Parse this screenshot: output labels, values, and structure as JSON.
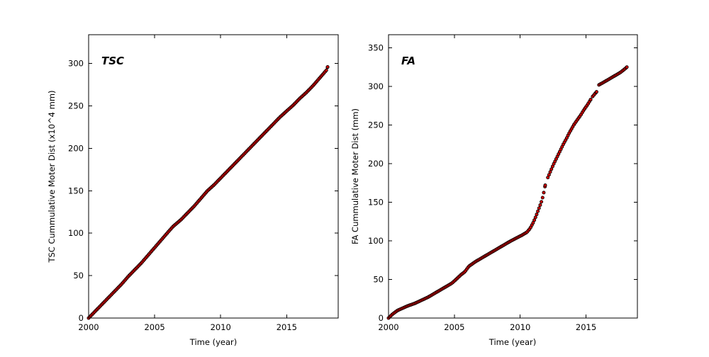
{
  "figure": {
    "background": "#ffffff",
    "axis_color": "#000000"
  },
  "chart_data": [
    {
      "type": "scatter",
      "panel_label": "TSC",
      "xlabel": "Time (year)",
      "ylabel": "TSC Cummulative Moter Dist (x10^4 mm)",
      "xlim": [
        2000,
        2018.9
      ],
      "ylim": [
        0,
        334
      ],
      "xticks": [
        2000,
        2005,
        2010,
        2015
      ],
      "yticks": [
        0,
        50,
        100,
        150,
        200,
        250,
        300
      ],
      "grid": false,
      "legend": "none",
      "marker": {
        "shape": "circle",
        "fill_color": "#cc0000",
        "edge_color": "#000000"
      },
      "series": [
        {
          "name": "TSC",
          "segments": [
            [
              [
                2000.0,
                0
              ],
              [
                2000.5,
                8
              ],
              [
                2001.0,
                16
              ],
              [
                2001.5,
                24
              ],
              [
                2002.0,
                32
              ],
              [
                2002.5,
                40
              ],
              [
                2003.0,
                49
              ],
              [
                2003.5,
                57
              ],
              [
                2004.0,
                65
              ],
              [
                2004.5,
                74
              ],
              [
                2005.0,
                83
              ],
              [
                2005.5,
                92
              ],
              [
                2006.0,
                101
              ],
              [
                2006.4,
                108
              ],
              [
                2007.0,
                116
              ],
              [
                2007.5,
                124
              ],
              [
                2008.0,
                132
              ],
              [
                2008.5,
                141
              ],
              [
                2009.0,
                150
              ],
              [
                2009.5,
                157
              ],
              [
                2010.0,
                165
              ],
              [
                2010.5,
                173
              ],
              [
                2011.0,
                181
              ],
              [
                2011.5,
                189
              ],
              [
                2012.0,
                197
              ],
              [
                2012.5,
                205
              ],
              [
                2013.0,
                213
              ],
              [
                2013.5,
                221
              ],
              [
                2014.0,
                229
              ],
              [
                2014.5,
                237
              ],
              [
                2015.0,
                244
              ],
              [
                2015.5,
                251
              ],
              [
                2016.0,
                259
              ],
              [
                2016.5,
                266
              ],
              [
                2017.0,
                274
              ],
              [
                2017.5,
                283
              ],
              [
                2018.0,
                292
              ],
              [
                2018.1,
                296
              ]
            ]
          ]
        }
      ]
    },
    {
      "type": "scatter",
      "panel_label": "FA",
      "xlabel": "Time (year)",
      "ylabel": "FA Cummulative Moter Dist (mm)",
      "xlim": [
        2000,
        2018.9
      ],
      "ylim": [
        0,
        367
      ],
      "xticks": [
        2000,
        2005,
        2010,
        2015
      ],
      "yticks": [
        0,
        50,
        100,
        150,
        200,
        250,
        300,
        350
      ],
      "grid": false,
      "legend": "none",
      "marker": {
        "shape": "circle",
        "fill_color": "#cc0000",
        "edge_color": "#000000"
      },
      "series": [
        {
          "name": "FA",
          "segments": [
            [
              [
                2000.0,
                0
              ],
              [
                2000.3,
                5
              ],
              [
                2000.7,
                10
              ],
              [
                2001.1,
                13
              ],
              [
                2001.5,
                16
              ],
              [
                2002.0,
                19
              ],
              [
                2002.5,
                23
              ],
              [
                2003.0,
                27
              ],
              [
                2003.5,
                32
              ],
              [
                2004.0,
                37
              ],
              [
                2004.4,
                41
              ],
              [
                2004.8,
                45
              ],
              [
                2005.0,
                48
              ],
              [
                2005.5,
                56
              ],
              [
                2005.8,
                60
              ],
              [
                2006.1,
                67
              ],
              [
                2006.6,
                73
              ],
              [
                2007.1,
                78
              ],
              [
                2007.6,
                83
              ],
              [
                2008.1,
                88
              ],
              [
                2008.7,
                94
              ],
              [
                2009.2,
                99
              ],
              [
                2009.75,
                104
              ],
              [
                2010.1,
                107
              ],
              [
                2010.5,
                111
              ],
              [
                2010.75,
                116
              ],
              [
                2011.0,
                124
              ],
              [
                2011.2,
                132
              ],
              [
                2011.4,
                141
              ],
              [
                2011.6,
                150
              ],
              [
                2011.75,
                159
              ],
              [
                2011.9,
                172
              ]
            ],
            [
              [
                2012.1,
                182
              ],
              [
                2012.3,
                190
              ],
              [
                2012.5,
                198
              ],
              [
                2012.7,
                205
              ],
              [
                2012.9,
                212
              ],
              [
                2013.1,
                219
              ],
              [
                2013.3,
                226
              ],
              [
                2013.5,
                232
              ],
              [
                2013.7,
                239
              ],
              [
                2013.9,
                245
              ],
              [
                2014.1,
                251
              ],
              [
                2014.35,
                257
              ],
              [
                2014.6,
                263
              ],
              [
                2014.85,
                270
              ],
              [
                2015.1,
                276
              ],
              [
                2015.35,
                283
              ]
            ],
            [
              [
                2015.5,
                287
              ],
              [
                2015.65,
                290
              ],
              [
                2015.8,
                293
              ]
            ],
            [
              [
                2015.98,
                302
              ],
              [
                2016.3,
                305
              ],
              [
                2016.7,
                309
              ],
              [
                2017.0,
                312
              ],
              [
                2017.3,
                315
              ],
              [
                2017.6,
                318
              ],
              [
                2017.9,
                322
              ],
              [
                2018.1,
                325
              ]
            ]
          ]
        }
      ]
    }
  ]
}
